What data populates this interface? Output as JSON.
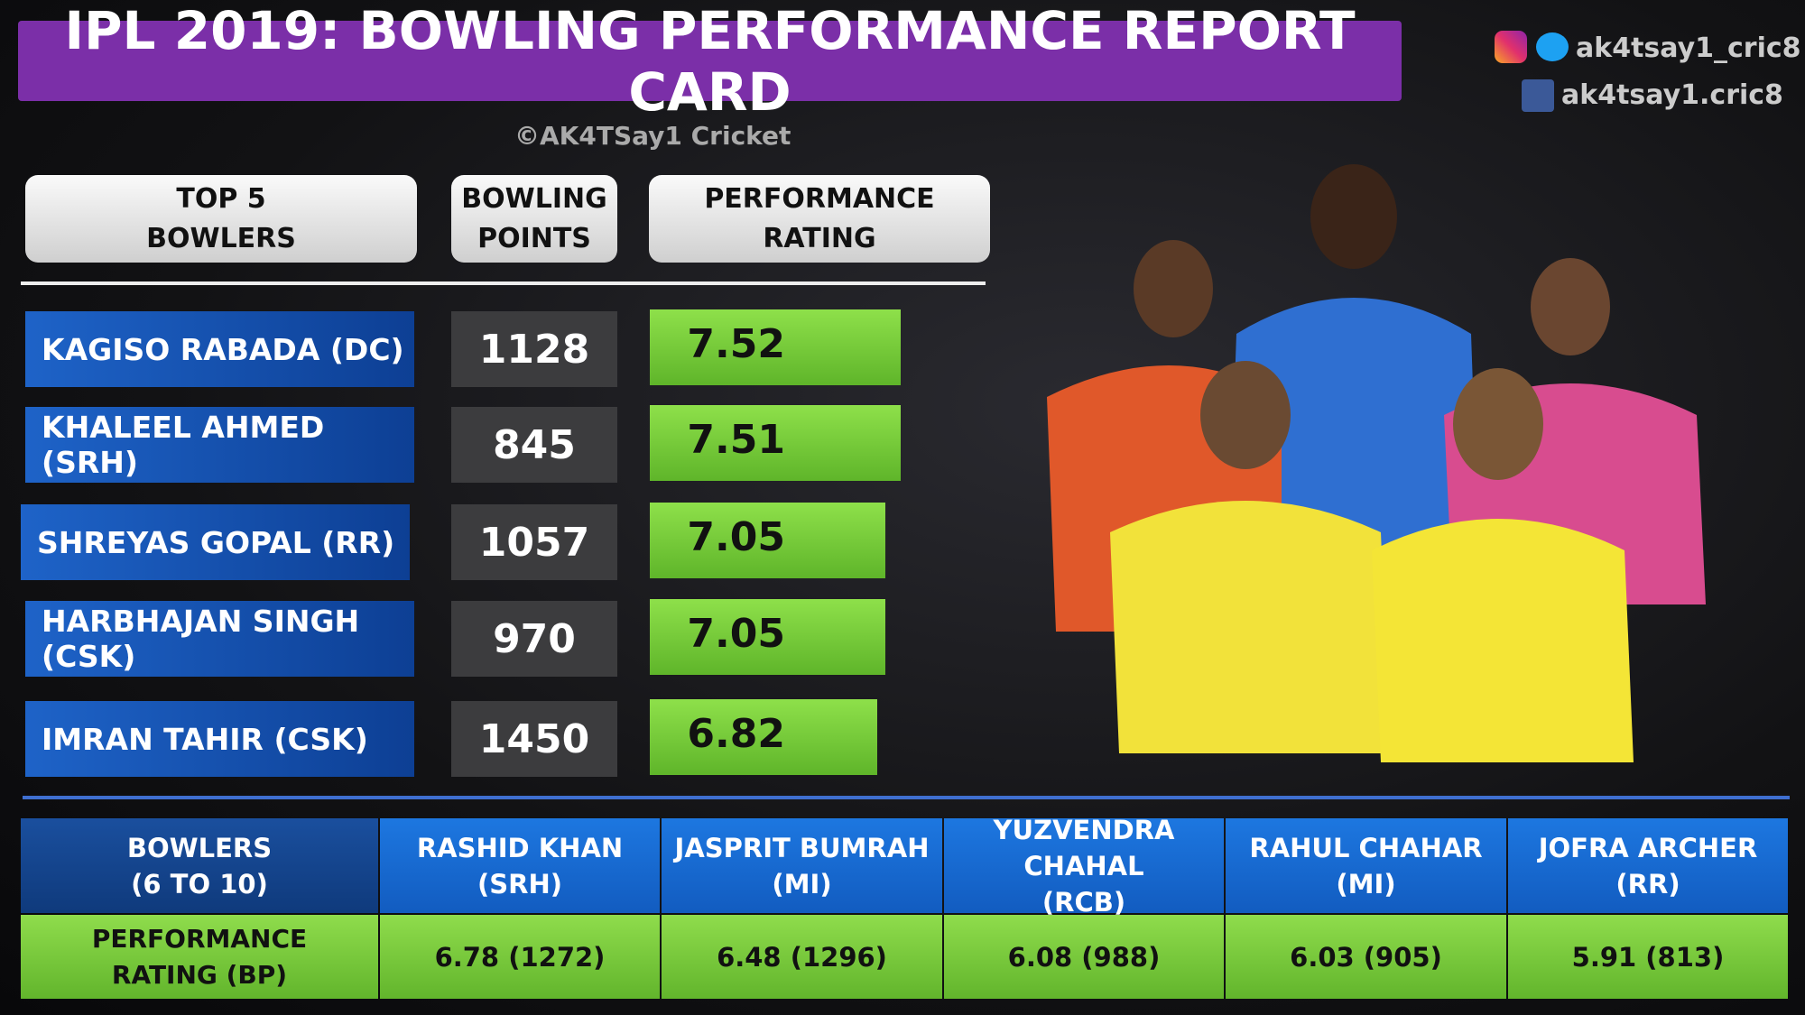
{
  "header": {
    "title": "IPL 2019: BOWLING PERFORMANCE REPORT CARD",
    "credit": "©AK4TSay1 Cricket",
    "social": [
      "ak4tsay1_cric8",
      "ak4tsay1.cric8"
    ]
  },
  "top_table": {
    "columns": [
      [
        "TOP 5",
        "BOWLERS"
      ],
      [
        "BOWLING",
        "POINTS"
      ],
      [
        "PERFORMANCE",
        "RATING"
      ]
    ],
    "rows": [
      {
        "name": "KAGISO RABADA (DC)",
        "points": "1128",
        "rating": 7.52
      },
      {
        "name": "KHALEEL AHMED (SRH)",
        "points": "845",
        "rating": 7.51
      },
      {
        "name": "SHREYAS GOPAL (RR)",
        "points": "1057",
        "rating": 7.05
      },
      {
        "name": "HARBHAJAN SINGH (CSK)",
        "points": "970",
        "rating": 7.05
      },
      {
        "name": "IMRAN TAHIR (CSK)",
        "points": "1450",
        "rating": 6.82
      }
    ]
  },
  "bottom_table": {
    "header": [
      [
        "BOWLERS",
        "(6 TO 10)"
      ],
      [
        "RASHID KHAN",
        "(SRH)"
      ],
      [
        "JASPRIT BUMRAH",
        "(MI)"
      ],
      [
        "YUZVENDRA CHAHAL",
        "(RCB)"
      ],
      [
        "RAHUL CHAHAR",
        "(MI)"
      ],
      [
        "JOFRA ARCHER",
        "(RR)"
      ]
    ],
    "row_label": [
      "PERFORMANCE",
      "RATING (BP)"
    ],
    "values": [
      "6.78 (1272)",
      "6.48 (1296)",
      "6.08 (988)",
      "6.03 (905)",
      "5.91 (813)"
    ]
  }
}
